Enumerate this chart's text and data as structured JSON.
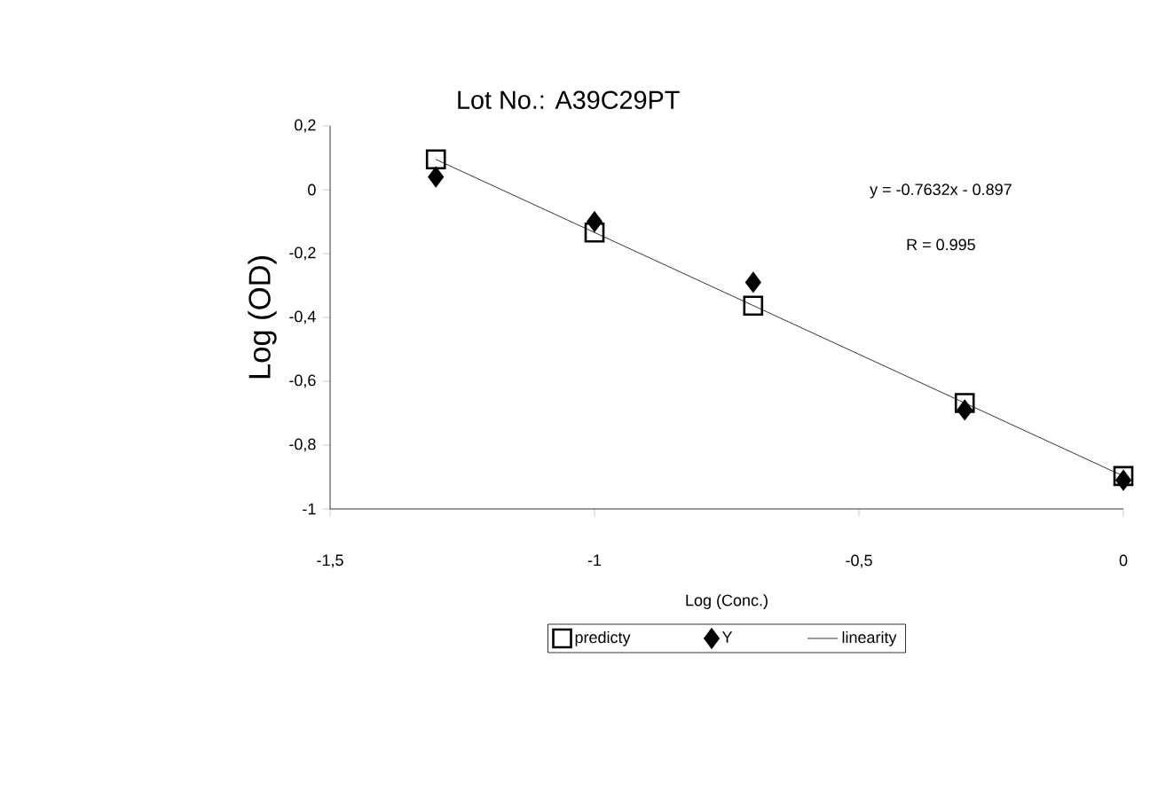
{
  "chart_data": {
    "type": "scatter",
    "title": "Lot No.: A39C29PT",
    "xlabel": "Log (Conc.)",
    "ylabel": "Log (OD)",
    "xlim": [
      -1.5,
      0
    ],
    "ylim": [
      -1,
      0.2
    ],
    "xticks": [
      {
        "value": -1.5,
        "label": "-1,5"
      },
      -1,
      {
        "value": -0.5,
        "label": "-0,5"
      },
      0
    ],
    "yticks": [
      -1,
      {
        "value": -0.8,
        "label": "-0,8"
      },
      {
        "value": -0.6,
        "label": "-0,6"
      },
      {
        "value": -0.4,
        "label": "-0,4"
      },
      {
        "value": -0.2,
        "label": "-0,2"
      },
      0,
      {
        "value": 0.2,
        "label": "0,2"
      }
    ],
    "grid": false,
    "legend": "bottom",
    "annotations": [
      "y = -0.7632x - 0.897",
      "R = 0.995"
    ],
    "series": [
      {
        "name": "predicty",
        "type": "scatter",
        "marker": "square",
        "color": "#000000",
        "x": [
          -1.3,
          -1,
          -0.7,
          -0.3,
          0
        ],
        "values": [
          0.095,
          -0.134,
          -0.363,
          -0.668,
          -0.897
        ]
      },
      {
        "name": "Y",
        "type": "scatter",
        "marker": "diamond",
        "color": "#000000",
        "x": [
          -1.3,
          -1,
          -0.7,
          -0.3,
          0
        ],
        "values": [
          0.04,
          -0.1,
          -0.29,
          -0.69,
          -0.91
        ]
      },
      {
        "name": "linearity",
        "type": "line",
        "marker": "none",
        "color": "#000000",
        "x": [
          -1.3,
          0
        ],
        "values": [
          0.095,
          -0.897
        ]
      }
    ]
  }
}
